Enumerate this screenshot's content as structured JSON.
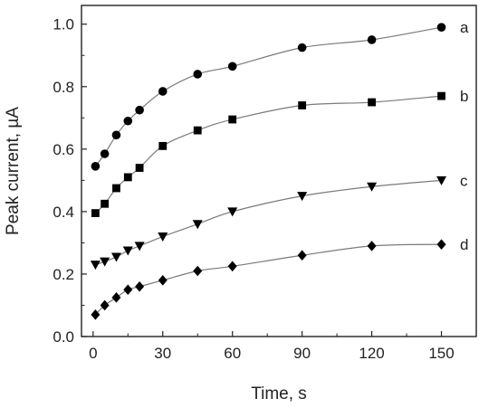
{
  "chart_data": {
    "type": "line",
    "title": "",
    "xlabel": "Time, s",
    "ylabel": "Peak current, µA",
    "xlim": [
      -5,
      165
    ],
    "ylim": [
      0.0,
      1.06
    ],
    "xticks": [
      0,
      30,
      60,
      90,
      120,
      150
    ],
    "yticks": [
      0.0,
      0.2,
      0.4,
      0.6,
      0.8,
      1.0
    ],
    "x_tick_labels": [
      "0",
      "30",
      "60",
      "90",
      "120",
      "150"
    ],
    "y_tick_labels": [
      "0.0",
      "0.2",
      "0.4",
      "0.6",
      "0.8",
      "1.0"
    ],
    "grid": false,
    "legend": "none",
    "line_color": "#7a7a7a",
    "marker_color": "#000000",
    "series": [
      {
        "name": "a",
        "marker": "circle",
        "x": [
          1,
          5,
          10,
          15,
          20,
          30,
          45,
          60,
          90,
          120,
          150
        ],
        "values": [
          0.545,
          0.585,
          0.645,
          0.69,
          0.725,
          0.785,
          0.84,
          0.865,
          0.925,
          0.95,
          0.99
        ]
      },
      {
        "name": "b",
        "marker": "square",
        "x": [
          1,
          5,
          10,
          15,
          20,
          30,
          45,
          60,
          90,
          120,
          150
        ],
        "values": [
          0.395,
          0.425,
          0.475,
          0.51,
          0.54,
          0.61,
          0.66,
          0.695,
          0.74,
          0.75,
          0.77
        ]
      },
      {
        "name": "c",
        "marker": "triangle-down",
        "x": [
          1,
          5,
          10,
          15,
          20,
          30,
          45,
          60,
          90,
          120,
          150
        ],
        "values": [
          0.23,
          0.24,
          0.255,
          0.275,
          0.29,
          0.32,
          0.36,
          0.4,
          0.45,
          0.48,
          0.5
        ]
      },
      {
        "name": "d",
        "marker": "diamond",
        "x": [
          1,
          5,
          10,
          15,
          20,
          30,
          45,
          60,
          90,
          120,
          150
        ],
        "values": [
          0.07,
          0.1,
          0.125,
          0.15,
          0.16,
          0.18,
          0.21,
          0.225,
          0.26,
          0.29,
          0.295
        ]
      }
    ]
  }
}
